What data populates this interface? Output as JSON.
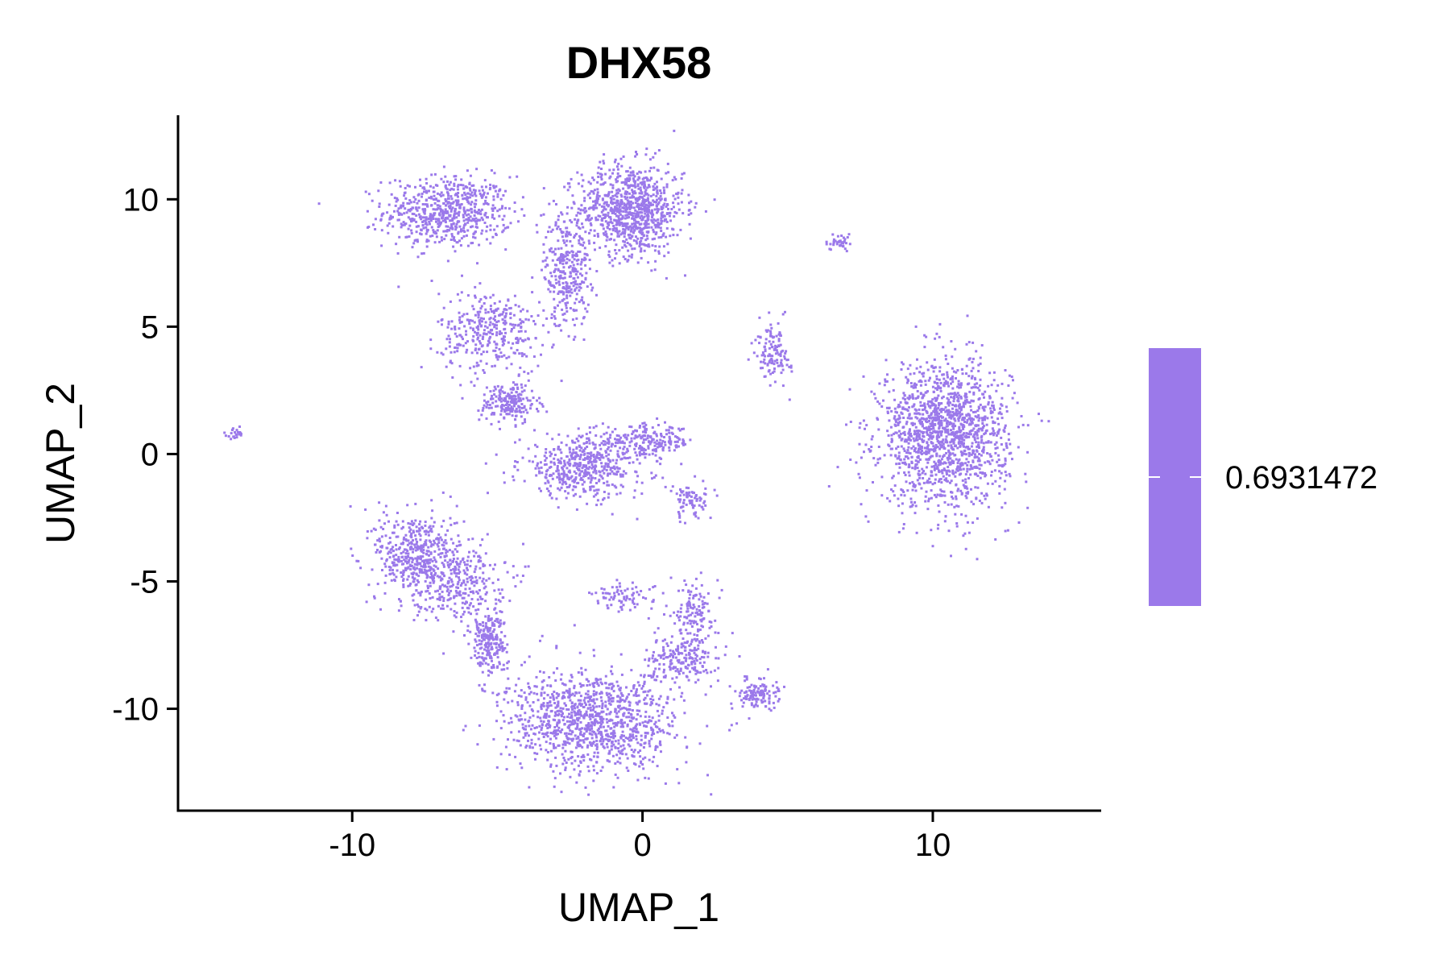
{
  "chart_data": {
    "type": "scatter",
    "title": "DHX58",
    "xlabel": "UMAP_1",
    "ylabel": "UMAP_2",
    "xlim": [
      -16,
      15.8
    ],
    "ylim": [
      -14,
      13.3
    ],
    "x_ticks": [
      -10,
      0,
      10
    ],
    "y_ticks": [
      -10,
      -5,
      0,
      5,
      10
    ],
    "grid": false,
    "point_color": "#9B79EA",
    "legend": {
      "placement": "right",
      "type": "colorbar",
      "label": "0.6931472",
      "color": "#9B79EA"
    },
    "clusters": [
      {
        "cx": -6.7,
        "cy": 9.5,
        "sx": 1.1,
        "sy": 0.7,
        "n": 650
      },
      {
        "cx": -0.4,
        "cy": 9.6,
        "sx": 0.9,
        "sy": 0.9,
        "n": 900
      },
      {
        "cx": -2.6,
        "cy": 7.2,
        "sx": 0.4,
        "sy": 1.1,
        "n": 300
      },
      {
        "cx": -5.2,
        "cy": 4.8,
        "sx": 0.9,
        "sy": 0.8,
        "n": 350
      },
      {
        "cx": -4.6,
        "cy": 2.0,
        "sx": 0.5,
        "sy": 0.4,
        "n": 200
      },
      {
        "cx": -2.0,
        "cy": -0.5,
        "sx": 1.1,
        "sy": 0.6,
        "n": 500
      },
      {
        "cx": 0.2,
        "cy": 0.5,
        "sx": 0.8,
        "sy": 0.3,
        "n": 200
      },
      {
        "cx": 10.4,
        "cy": 0.8,
        "sx": 1.1,
        "sy": 1.4,
        "n": 1500
      },
      {
        "cx": -7.8,
        "cy": -4.0,
        "sx": 0.7,
        "sy": 0.9,
        "n": 450
      },
      {
        "cx": -6.3,
        "cy": -5.0,
        "sx": 0.8,
        "sy": 0.8,
        "n": 300
      },
      {
        "cx": -5.3,
        "cy": -7.4,
        "sx": 0.3,
        "sy": 0.6,
        "n": 220
      },
      {
        "cx": -1.7,
        "cy": -10.5,
        "sx": 1.5,
        "sy": 1.0,
        "n": 1100
      },
      {
        "cx": 1.4,
        "cy": -8.0,
        "sx": 0.6,
        "sy": 0.5,
        "n": 200
      },
      {
        "cx": 1.8,
        "cy": -6.0,
        "sx": 0.3,
        "sy": 0.6,
        "n": 120
      },
      {
        "cx": 4.0,
        "cy": -9.4,
        "sx": 0.35,
        "sy": 0.3,
        "n": 120
      },
      {
        "cx": 4.5,
        "cy": 4.0,
        "sx": 0.3,
        "sy": 0.6,
        "n": 120
      },
      {
        "cx": 6.8,
        "cy": 8.3,
        "sx": 0.2,
        "sy": 0.15,
        "n": 40
      },
      {
        "cx": -14.0,
        "cy": 0.8,
        "sx": 0.15,
        "sy": 0.1,
        "n": 25
      },
      {
        "cx": 1.7,
        "cy": -1.8,
        "sx": 0.4,
        "sy": 0.4,
        "n": 80
      },
      {
        "cx": -0.5,
        "cy": -5.6,
        "sx": 0.6,
        "sy": 0.3,
        "n": 80
      }
    ]
  }
}
